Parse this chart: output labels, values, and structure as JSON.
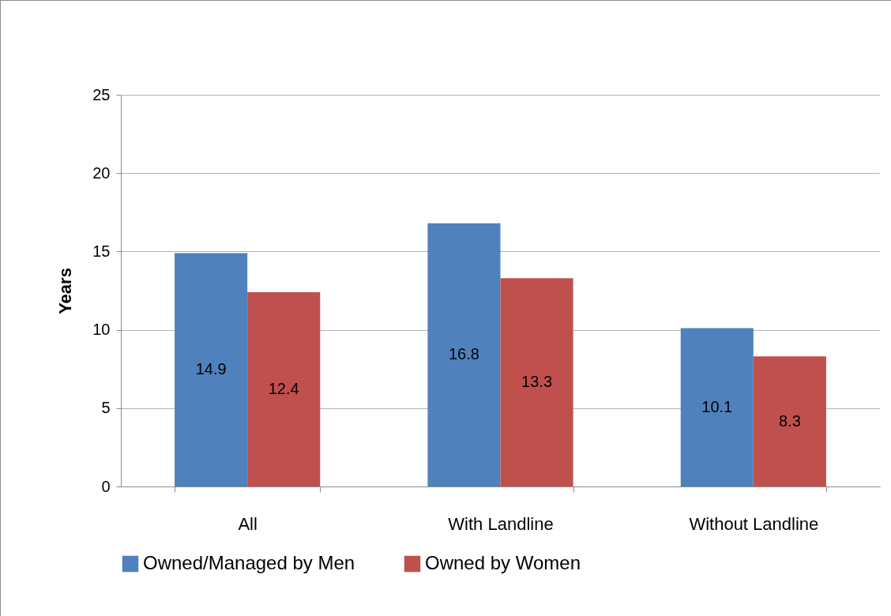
{
  "chart_data": {
    "type": "bar",
    "ylabel": "Years",
    "categories": [
      "All",
      "With Landline",
      "Without Landline"
    ],
    "series": [
      {
        "name": "Owned/Managed by Men",
        "color": "#4f81bd",
        "values": [
          14.9,
          16.8,
          10.1
        ]
      },
      {
        "name": "Owned by Women",
        "color": "#c0504d",
        "values": [
          12.4,
          13.3,
          8.3
        ]
      }
    ],
    "ylim": [
      0,
      25
    ],
    "yticks": [
      0,
      5,
      10,
      15,
      20,
      25
    ],
    "grid": "y",
    "legend": "bottom",
    "data_labels": true
  }
}
